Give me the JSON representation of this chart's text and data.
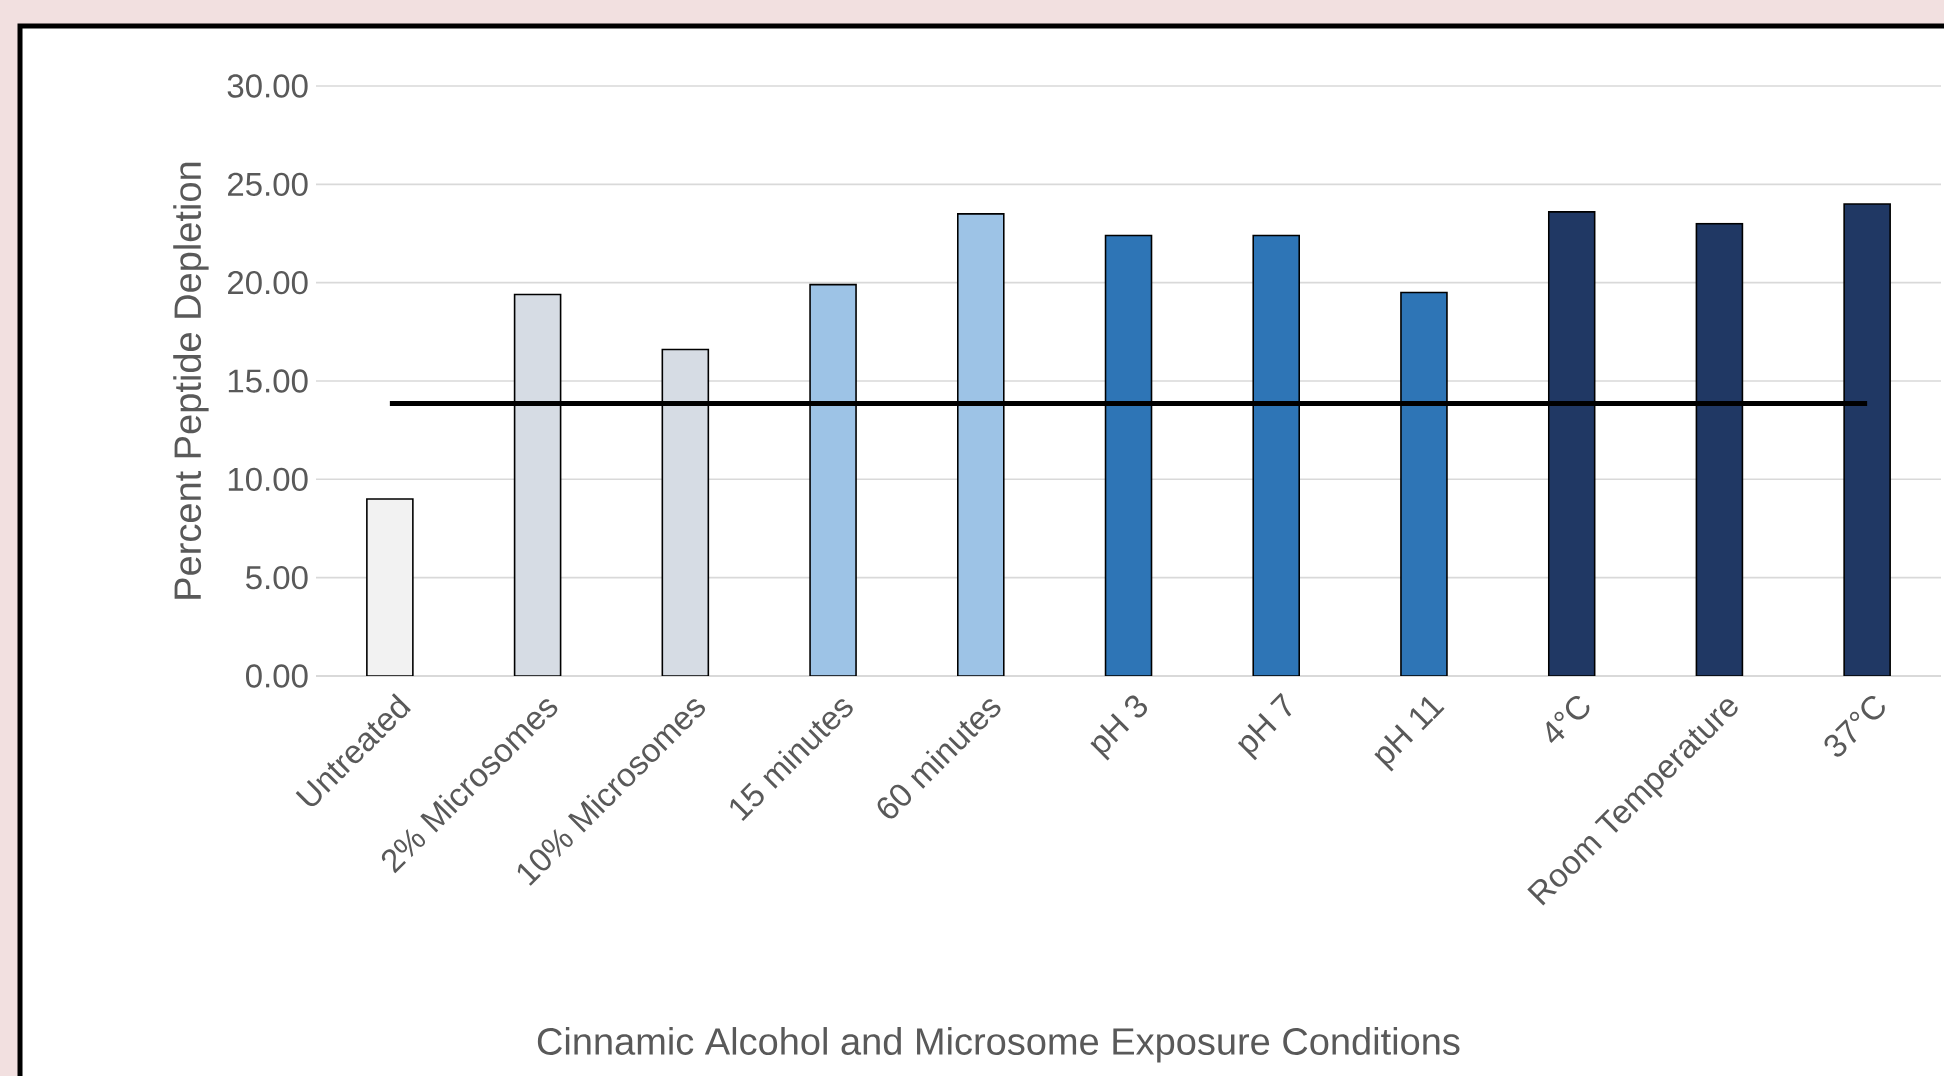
{
  "chart_data": {
    "type": "bar",
    "xlabel": "Cinnamic Alcohol and Microsome Exposure Conditions",
    "ylabel": "Percent Peptide Depletion",
    "categories": [
      "Untreated",
      "2% Microsomes",
      "10% Microsomes",
      "15 minutes",
      "60 minutes",
      "pH 3",
      "pH 7",
      "pH 11",
      "4°C",
      "Room Temperature",
      "37°C"
    ],
    "values": [
      9.0,
      19.4,
      16.6,
      19.9,
      23.5,
      22.4,
      22.4,
      19.5,
      23.6,
      23.0,
      24.0
    ],
    "colors": [
      "#f2f2f2",
      "#d6dce4",
      "#d6dce4",
      "#9dc3e6",
      "#9dc3e6",
      "#2e75b6",
      "#2e75b6",
      "#2e75b6",
      "#203864",
      "#203864",
      "#203864"
    ],
    "ylim": [
      0,
      30
    ],
    "yticks": [
      {
        "value": 0,
        "label": "0.00"
      },
      {
        "value": 5,
        "label": "5.00"
      },
      {
        "value": 10,
        "label": "10.00"
      },
      {
        "value": 15,
        "label": "15.00"
      },
      {
        "value": 20,
        "label": "20.00"
      },
      {
        "value": 25,
        "label": "25.00"
      },
      {
        "value": 30,
        "label": "30.00"
      }
    ],
    "ref_lines": [
      {
        "axis": "y",
        "value": 13.85,
        "color": "#000000"
      }
    ],
    "grid": "y"
  }
}
